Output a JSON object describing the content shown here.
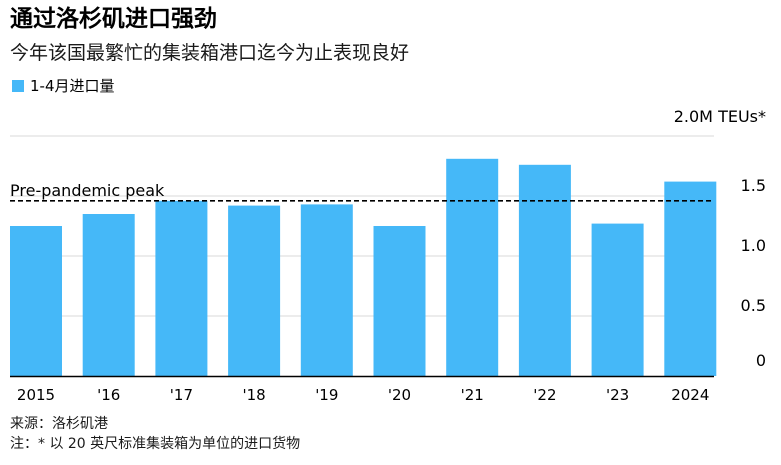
{
  "header": {
    "title": "通过洛杉矶进口强劲",
    "subtitle": "今年该国最繁忙的集装箱港口迄今为止表现良好"
  },
  "colors": {
    "bar": "#45b8f8",
    "grid": "#d9d9d9",
    "axis": "#000000",
    "reference_line": "#000000"
  },
  "chart_data": {
    "type": "bar",
    "categories": [
      "2015",
      "'16",
      "'17",
      "'18",
      "'19",
      "'20",
      "'21",
      "'22",
      "'23",
      "2024"
    ],
    "series": [
      {
        "name": "1-4月进口量",
        "values": [
          1.25,
          1.35,
          1.46,
          1.42,
          1.43,
          1.25,
          1.81,
          1.76,
          1.27,
          1.62
        ]
      }
    ],
    "ylim": [
      0,
      2.0
    ],
    "yticks": [
      {
        "value": 2.0,
        "label": "2.0M TEUs*"
      },
      {
        "value": 1.5,
        "label": "1.5"
      },
      {
        "value": 1.0,
        "label": "1.0"
      },
      {
        "value": 0.5,
        "label": "0.5"
      },
      {
        "value": 0,
        "label": "0"
      }
    ],
    "reference_line": {
      "value": 1.46,
      "label": "Pre-pandemic peak"
    },
    "grid": true,
    "legend_position": "top-left",
    "ylabel": "",
    "xlabel": ""
  },
  "footer": {
    "source": "来源：洛杉矶港",
    "note": "注：* 以 20 英尺标准集装箱为单位的进口货物"
  }
}
